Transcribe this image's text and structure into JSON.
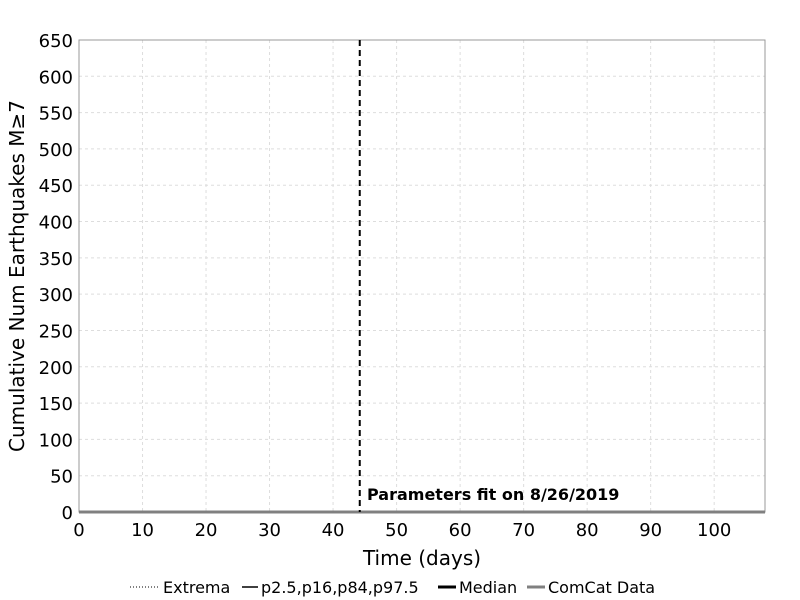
{
  "chart_data": {
    "type": "line",
    "title": "",
    "xlabel": "Time (days)",
    "ylabel": "Cumulative Num Earthquakes M≥7",
    "xlim": [
      0,
      108
    ],
    "ylim": [
      0,
      650
    ],
    "x_ticks": [
      0,
      10,
      20,
      30,
      40,
      50,
      60,
      70,
      80,
      90,
      100
    ],
    "y_ticks": [
      0,
      50,
      100,
      150,
      200,
      250,
      300,
      350,
      400,
      450,
      500,
      550,
      600,
      650
    ],
    "grid": true,
    "legend_position": "bottom",
    "series": [
      {
        "name": "Extrema",
        "style": "dotted",
        "color": "#000000",
        "x": [],
        "y": []
      },
      {
        "name": "p2.5,p16,p84,p97.5",
        "style": "solid-thin",
        "color": "#000000",
        "x": [],
        "y": []
      },
      {
        "name": "Median",
        "style": "solid-thick",
        "color": "#000000",
        "x": [],
        "y": []
      },
      {
        "name": "ComCat Data",
        "style": "solid-thick",
        "color": "#808080",
        "x": [
          0,
          108
        ],
        "y": [
          0,
          0
        ]
      }
    ],
    "vertical_marker": {
      "x": 44.2,
      "style": "dashed",
      "color": "#000000"
    },
    "annotation": {
      "text": "Parameters fit on 8/26/2019",
      "x": 45,
      "y": 0
    }
  }
}
